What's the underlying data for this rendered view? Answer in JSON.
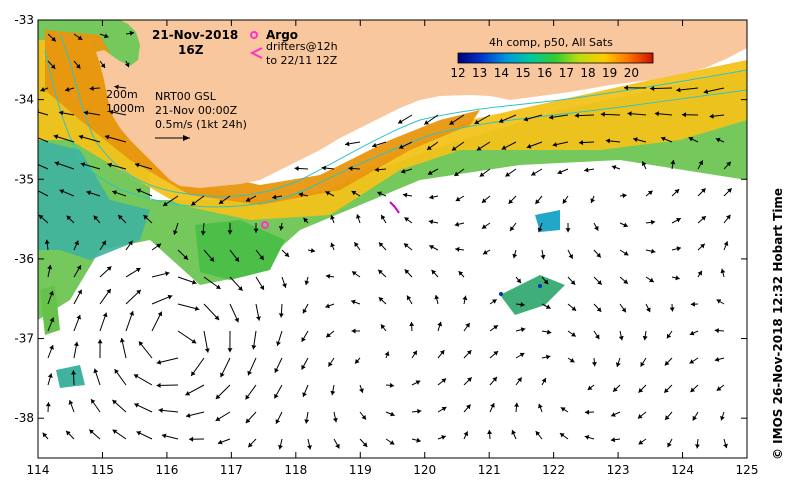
{
  "map": {
    "date": "21-Nov-2018",
    "hour": "16Z",
    "legend": {
      "argo_label": "Argo",
      "drifters_label": "drifters@12h",
      "drifters_sub": "to 22/11 12Z"
    },
    "contours": {
      "label_200m": "200m",
      "label_1000m": "1000m"
    },
    "current_product": {
      "line1": "NRT00 GSL",
      "line2": "21-Nov 00:00Z",
      "scale": "0.5m/s (1kt 24h)"
    },
    "colorbar": {
      "title": "4h comp, p50, All Sats",
      "ticks": [
        "12",
        "13",
        "14",
        "15",
        "16",
        "17",
        "18",
        "19",
        "20"
      ],
      "min": 12,
      "max": 21
    },
    "credit": "© IMOS 26-Nov-2018 12:32 Hobart Time",
    "axes": {
      "lon_ticks": [
        "114",
        "115",
        "116",
        "117",
        "118",
        "119",
        "120",
        "121",
        "122",
        "123",
        "124",
        "125"
      ],
      "lat_ticks": [
        "-33",
        "-34",
        "-35",
        "-36",
        "-37",
        "-38"
      ],
      "lon_range": [
        114,
        125
      ],
      "lat_range": [
        -38.5,
        -33
      ]
    },
    "colors": {
      "land": "#f9c79d",
      "ocean": "#ffffff",
      "argo": "#ff33cc",
      "drifter": "#cc00cc",
      "contour": "#2ec4c4"
    }
  }
}
